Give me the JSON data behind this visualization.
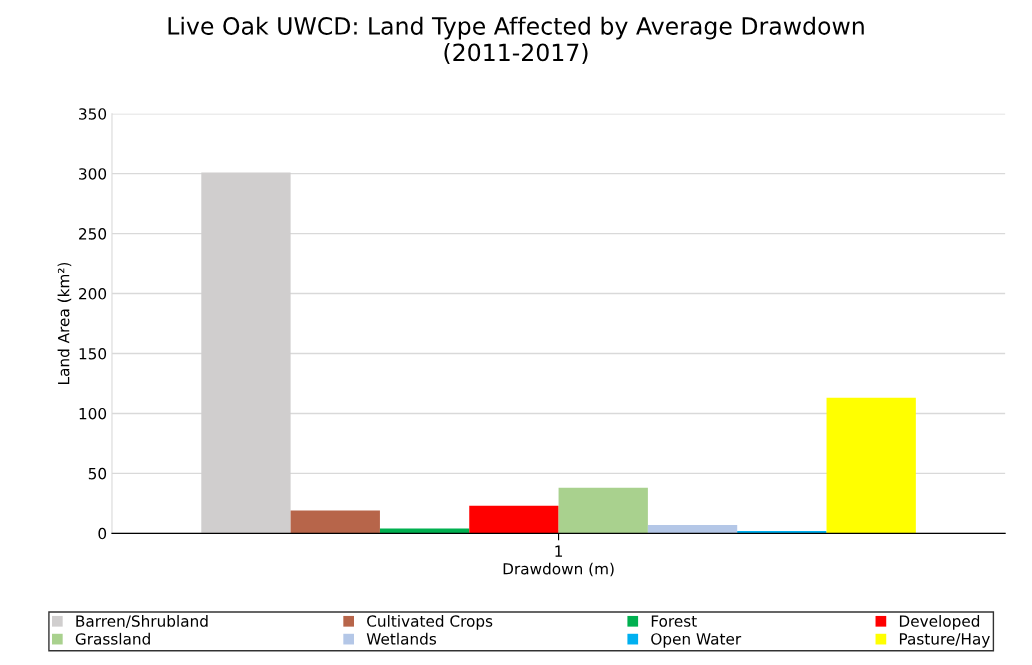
{
  "chart_data": {
    "type": "bar",
    "title": "Live Oak UWCD: Land Type Affected by Average Drawdown\n(2011-2017)",
    "xlabel": "Drawdown (m)",
    "ylabel": "Land Area (km²)",
    "categories": [
      "1"
    ],
    "series": [
      {
        "name": "Barren/Shrubland",
        "color": "#d0cece",
        "values": [
          301
        ]
      },
      {
        "name": "Cultivated Crops",
        "color": "#b7654a",
        "values": [
          19
        ]
      },
      {
        "name": "Forest",
        "color": "#00b050",
        "values": [
          4
        ]
      },
      {
        "name": "Developed",
        "color": "#ff0000",
        "values": [
          23
        ]
      },
      {
        "name": "Grassland",
        "color": "#a9d18e",
        "values": [
          38
        ]
      },
      {
        "name": "Wetlands",
        "color": "#b4c7e7",
        "values": [
          7
        ]
      },
      {
        "name": "Open Water",
        "color": "#00b0f0",
        "values": [
          2
        ]
      },
      {
        "name": "Pasture/Hay",
        "color": "#ffff00",
        "values": [
          113
        ]
      }
    ],
    "ylim": [
      0,
      350
    ],
    "yticks": [
      0,
      50,
      100,
      150,
      200,
      250,
      300,
      350
    ],
    "grid": "y",
    "legend": "bottom"
  }
}
